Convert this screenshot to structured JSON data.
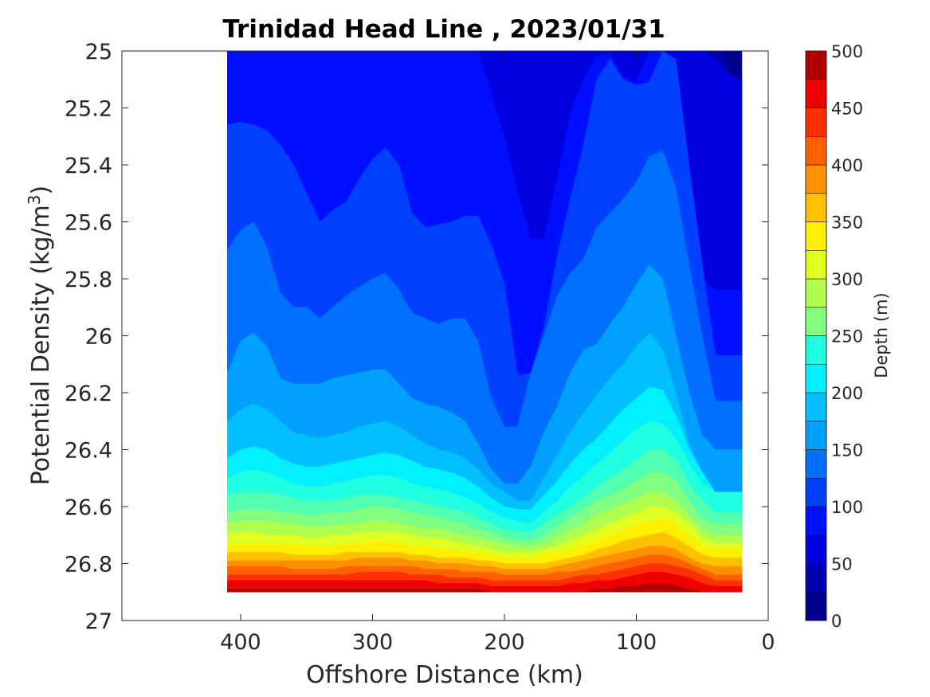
{
  "chart_data": {
    "type": "contour",
    "title": "Trinidad Head Line , 2023/01/31",
    "xlabel": "Offshore Distance (km)",
    "ylabel": "Potential Density (kg/m",
    "ylabel_sup": "3",
    "ylabel_close": ")",
    "x_axis_reversed": true,
    "y_axis_reversed": true,
    "xlim": [
      0,
      490
    ],
    "ylim": [
      25,
      27
    ],
    "xticks": [
      400,
      300,
      200,
      100,
      0
    ],
    "xtick_labels": [
      "400",
      "300",
      "200",
      "100",
      "0"
    ],
    "yticks": [
      25,
      25.2,
      25.4,
      25.6,
      25.8,
      26,
      26.2,
      26.4,
      26.6,
      26.8,
      27
    ],
    "ytick_labels": [
      "25",
      "25.2",
      "25.4",
      "25.6",
      "25.8",
      "26",
      "26.2",
      "26.4",
      "26.6",
      "26.8",
      "27"
    ],
    "colorbar": {
      "label": "Depth (m)",
      "ticks": [
        0,
        50,
        100,
        150,
        200,
        250,
        300,
        350,
        400,
        450,
        500
      ],
      "tick_labels": [
        "0",
        "50",
        "100",
        "150",
        "200",
        "250",
        "300",
        "350",
        "400",
        "450",
        "500"
      ],
      "level_step": 25,
      "range": [
        0,
        500
      ]
    },
    "x": [
      410,
      400,
      390,
      380,
      370,
      360,
      350,
      340,
      330,
      320,
      310,
      300,
      290,
      280,
      270,
      260,
      250,
      240,
      230,
      220,
      210,
      200,
      190,
      180,
      170,
      160,
      150,
      140,
      130,
      120,
      110,
      100,
      90,
      80,
      70,
      60,
      50,
      40,
      30,
      20
    ],
    "isopycnal_depths": [
      {
        "depth": 25,
        "sigma": [
          null,
          null,
          null,
          null,
          null,
          null,
          null,
          null,
          null,
          null,
          null,
          null,
          null,
          null,
          null,
          null,
          null,
          null,
          null,
          null,
          null,
          null,
          null,
          null,
          null,
          null,
          null,
          null,
          null,
          null,
          null,
          null,
          null,
          null,
          null,
          null,
          25.0,
          25.03,
          25.08,
          25.1
        ]
      },
      {
        "depth": 50,
        "sigma": [
          25.0,
          25.0,
          25.0,
          25.0,
          25.0,
          25.0,
          25.0,
          25.0,
          25.0,
          25.0,
          25.0,
          25.0,
          25.0,
          25.0,
          25.0,
          25.0,
          25.0,
          25.0,
          25.0,
          25.0,
          25.15,
          25.3,
          25.5,
          25.66,
          25.66,
          25.45,
          25.22,
          25.1,
          25.02,
          25.01,
          25.09,
          25.11,
          25.0,
          25.0,
          25.1,
          25.4,
          25.8,
          25.84,
          25.84,
          25.84
        ]
      },
      {
        "depth": 75,
        "sigma": [
          25.26,
          25.25,
          25.26,
          25.28,
          25.33,
          25.4,
          25.5,
          25.6,
          25.56,
          25.53,
          25.45,
          25.38,
          25.34,
          25.4,
          25.57,
          25.62,
          25.61,
          25.6,
          25.58,
          25.58,
          25.68,
          25.82,
          26.14,
          26.13,
          25.97,
          25.72,
          25.52,
          25.33,
          25.1,
          25.03,
          25.1,
          25.12,
          25.11,
          25.0,
          25.03,
          25.4,
          25.75,
          26.07,
          26.07,
          26.07
        ]
      },
      {
        "depth": 100,
        "sigma": [
          25.7,
          25.63,
          25.6,
          25.69,
          25.85,
          25.9,
          25.9,
          25.94,
          25.9,
          25.86,
          25.83,
          25.8,
          25.78,
          25.84,
          25.92,
          25.94,
          25.96,
          25.94,
          25.94,
          26.02,
          26.22,
          26.32,
          26.32,
          26.13,
          26.0,
          25.86,
          25.78,
          25.73,
          25.62,
          25.57,
          25.52,
          25.46,
          25.37,
          25.35,
          25.48,
          25.75,
          26.0,
          26.23,
          26.23,
          26.23
        ]
      },
      {
        "depth": 125,
        "sigma": [
          26.13,
          26.02,
          25.99,
          26.04,
          26.15,
          26.17,
          26.17,
          26.17,
          26.15,
          26.14,
          26.13,
          26.12,
          26.12,
          26.17,
          26.22,
          26.24,
          26.25,
          26.27,
          26.3,
          26.38,
          26.47,
          26.52,
          26.52,
          26.46,
          26.34,
          26.25,
          26.13,
          26.05,
          26.03,
          25.96,
          25.9,
          25.82,
          25.75,
          25.8,
          26.0,
          26.2,
          26.35,
          26.4,
          26.4,
          26.4
        ]
      },
      {
        "depth": 150,
        "sigma": [
          26.3,
          26.26,
          26.24,
          26.26,
          26.3,
          26.34,
          26.35,
          26.36,
          26.35,
          26.34,
          26.32,
          26.31,
          26.3,
          26.32,
          26.35,
          26.38,
          26.4,
          26.41,
          26.43,
          26.47,
          26.52,
          26.55,
          26.58,
          26.58,
          26.5,
          26.42,
          26.34,
          26.27,
          26.21,
          26.15,
          26.1,
          26.04,
          25.99,
          26.05,
          26.2,
          26.38,
          26.48,
          26.55,
          26.55,
          26.55
        ]
      },
      {
        "depth": 175,
        "sigma": [
          26.43,
          26.4,
          26.39,
          26.4,
          26.43,
          26.45,
          26.46,
          26.46,
          26.45,
          26.44,
          26.43,
          26.42,
          26.41,
          26.42,
          26.44,
          26.46,
          26.47,
          26.48,
          26.5,
          26.53,
          26.57,
          26.6,
          26.61,
          26.61,
          26.56,
          26.51,
          26.45,
          26.4,
          26.36,
          26.31,
          26.26,
          26.22,
          26.18,
          26.19,
          26.28,
          26.4,
          26.48,
          26.55,
          26.55,
          26.55
        ]
      },
      {
        "depth": 200,
        "sigma": [
          26.5,
          26.48,
          26.47,
          26.48,
          26.5,
          26.52,
          26.53,
          26.53,
          26.52,
          26.51,
          26.5,
          26.49,
          26.49,
          26.5,
          26.52,
          26.53,
          26.54,
          26.55,
          26.57,
          26.59,
          26.62,
          26.64,
          26.65,
          26.66,
          26.62,
          26.58,
          26.53,
          26.49,
          26.45,
          26.41,
          26.37,
          26.33,
          26.3,
          26.31,
          26.36,
          26.45,
          26.52,
          26.55,
          26.55,
          26.55
        ]
      },
      {
        "depth": 225,
        "sigma": [
          26.56,
          26.55,
          26.55,
          26.55,
          26.56,
          26.57,
          26.58,
          26.58,
          26.58,
          26.57,
          26.56,
          26.56,
          26.56,
          26.57,
          26.58,
          26.59,
          26.6,
          26.61,
          26.62,
          26.64,
          26.66,
          26.68,
          26.69,
          26.69,
          26.66,
          26.63,
          26.6,
          26.57,
          26.53,
          26.5,
          26.47,
          26.44,
          26.4,
          26.4,
          26.44,
          26.52,
          26.58,
          26.62,
          26.62,
          26.62
        ]
      },
      {
        "depth": 250,
        "sigma": [
          26.62,
          26.61,
          26.61,
          26.61,
          26.62,
          26.62,
          26.63,
          26.63,
          26.62,
          26.62,
          26.61,
          26.6,
          26.6,
          26.61,
          26.62,
          26.63,
          26.64,
          26.65,
          26.66,
          26.68,
          26.69,
          26.71,
          26.72,
          26.72,
          26.7,
          26.67,
          26.64,
          26.61,
          26.58,
          26.56,
          26.54,
          26.51,
          26.48,
          26.48,
          26.51,
          26.58,
          26.64,
          26.66,
          26.66,
          26.66
        ]
      },
      {
        "depth": 275,
        "sigma": [
          26.66,
          26.65,
          26.65,
          26.65,
          26.66,
          26.66,
          26.67,
          26.67,
          26.67,
          26.66,
          26.66,
          26.65,
          26.65,
          26.66,
          26.67,
          26.68,
          26.68,
          26.69,
          26.7,
          26.71,
          26.72,
          26.73,
          26.74,
          26.74,
          26.73,
          26.71,
          26.68,
          26.66,
          26.63,
          26.61,
          26.59,
          26.57,
          26.55,
          26.55,
          26.58,
          26.63,
          26.68,
          26.7,
          26.7,
          26.7
        ]
      },
      {
        "depth": 300,
        "sigma": [
          26.7,
          26.69,
          26.69,
          26.7,
          26.7,
          26.7,
          26.71,
          26.71,
          26.7,
          26.7,
          26.69,
          26.69,
          26.69,
          26.69,
          26.7,
          26.71,
          26.71,
          26.72,
          26.73,
          26.74,
          26.75,
          26.76,
          26.76,
          26.76,
          26.75,
          26.74,
          26.72,
          26.7,
          26.68,
          26.66,
          26.64,
          26.62,
          26.6,
          26.6,
          26.62,
          26.66,
          26.71,
          26.73,
          26.73,
          26.73
        ]
      },
      {
        "depth": 325,
        "sigma": [
          26.73,
          26.73,
          26.73,
          26.73,
          26.73,
          26.73,
          26.74,
          26.74,
          26.74,
          26.73,
          26.73,
          26.72,
          26.72,
          26.73,
          26.74,
          26.74,
          26.75,
          26.75,
          26.76,
          26.76,
          26.77,
          26.78,
          26.78,
          26.78,
          26.77,
          26.76,
          26.75,
          26.73,
          26.72,
          26.7,
          26.68,
          26.66,
          26.65,
          26.64,
          26.66,
          26.7,
          26.74,
          26.75,
          26.75,
          26.75
        ]
      },
      {
        "depth": 350,
        "sigma": [
          26.76,
          26.76,
          26.76,
          26.76,
          26.76,
          26.77,
          26.77,
          26.77,
          26.77,
          26.76,
          26.76,
          26.76,
          26.76,
          26.76,
          26.77,
          26.77,
          26.78,
          26.78,
          26.78,
          26.79,
          26.79,
          26.8,
          26.8,
          26.8,
          26.8,
          26.79,
          26.78,
          26.77,
          26.75,
          26.74,
          26.72,
          26.71,
          26.7,
          26.69,
          26.71,
          26.74,
          26.77,
          26.78,
          26.78,
          26.78
        ]
      },
      {
        "depth": 375,
        "sigma": [
          26.79,
          26.79,
          26.79,
          26.79,
          26.79,
          26.79,
          26.79,
          26.79,
          26.79,
          26.79,
          26.78,
          26.78,
          26.78,
          26.78,
          26.79,
          26.79,
          26.8,
          26.8,
          26.8,
          26.81,
          26.81,
          26.82,
          26.82,
          26.82,
          26.82,
          26.81,
          26.8,
          26.79,
          26.78,
          26.77,
          26.76,
          26.75,
          26.74,
          26.74,
          26.75,
          26.78,
          26.8,
          26.81,
          26.81,
          26.81
        ]
      },
      {
        "depth": 400,
        "sigma": [
          26.81,
          26.81,
          26.81,
          26.81,
          26.81,
          26.82,
          26.82,
          26.82,
          26.82,
          26.81,
          26.81,
          26.81,
          26.81,
          26.81,
          26.81,
          26.82,
          26.82,
          26.82,
          26.83,
          26.83,
          26.83,
          26.84,
          26.84,
          26.84,
          26.84,
          26.83,
          26.83,
          26.82,
          26.81,
          26.8,
          26.79,
          26.78,
          26.77,
          26.77,
          26.78,
          26.8,
          26.82,
          26.84,
          26.84,
          26.84
        ]
      },
      {
        "depth": 425,
        "sigma": [
          26.84,
          26.84,
          26.84,
          26.84,
          26.84,
          26.84,
          26.84,
          26.84,
          26.84,
          26.84,
          26.83,
          26.83,
          26.83,
          26.83,
          26.84,
          26.84,
          26.84,
          26.85,
          26.85,
          26.85,
          26.86,
          26.86,
          26.86,
          26.86,
          26.86,
          26.86,
          26.85,
          26.84,
          26.84,
          26.83,
          26.82,
          26.81,
          26.8,
          26.8,
          26.81,
          26.82,
          26.84,
          26.86,
          26.86,
          26.86
        ]
      },
      {
        "depth": 450,
        "sigma": [
          26.86,
          26.86,
          26.86,
          26.86,
          26.86,
          26.86,
          26.86,
          26.86,
          26.86,
          26.86,
          26.86,
          26.86,
          26.86,
          26.86,
          26.86,
          26.86,
          26.87,
          26.87,
          26.87,
          26.87,
          26.88,
          26.88,
          26.88,
          26.88,
          26.88,
          26.88,
          26.87,
          26.87,
          26.86,
          26.86,
          26.85,
          26.84,
          26.83,
          26.83,
          26.84,
          26.85,
          26.87,
          26.88,
          26.88,
          26.88
        ]
      },
      {
        "depth": 475,
        "sigma": [
          26.89,
          26.89,
          26.89,
          26.89,
          26.89,
          26.89,
          26.89,
          26.89,
          26.89,
          26.89,
          26.89,
          26.89,
          26.89,
          26.89,
          26.89,
          26.89,
          26.89,
          26.89,
          26.89,
          26.89,
          26.9,
          26.9,
          26.9,
          26.9,
          26.9,
          26.9,
          26.9,
          26.9,
          26.89,
          26.89,
          26.88,
          26.88,
          26.87,
          26.87,
          26.88,
          26.89,
          26.9,
          26.9,
          26.9,
          26.9
        ]
      }
    ],
    "data_extent": {
      "x_min": 20,
      "x_max": 410,
      "sigma_max": 26.9
    },
    "colormap": "jet",
    "colors": [
      "#00008f",
      "#0000af",
      "#0000df",
      "#0010ff",
      "#0040ff",
      "#0070ff",
      "#00a0ff",
      "#00c0ff",
      "#00f0ff",
      "#20ffdf",
      "#50ffaf",
      "#80ff80",
      "#afff50",
      "#dfff20",
      "#ffef00",
      "#ffc000",
      "#ff9000",
      "#ff6000",
      "#ff3000",
      "#ef0000",
      "#b00000"
    ]
  }
}
